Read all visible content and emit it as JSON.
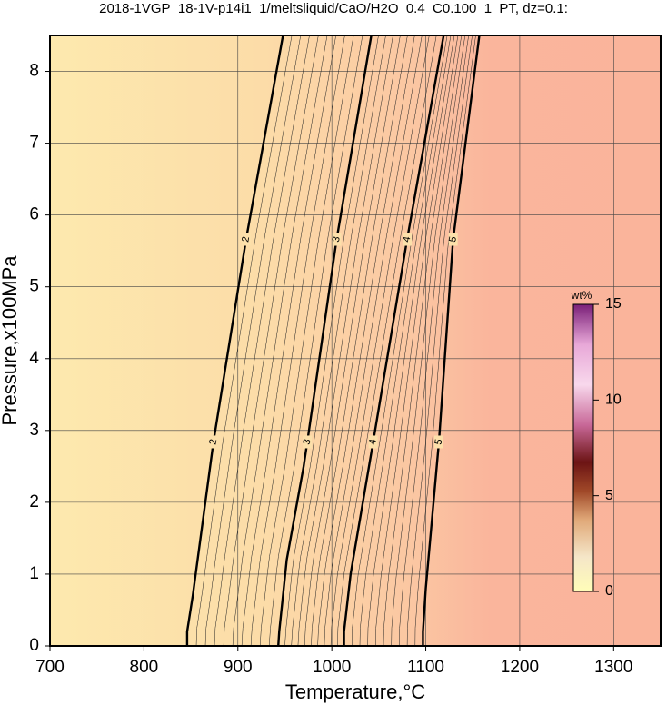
{
  "chart_data": {
    "type": "contour",
    "title": "2018-1VGP_18-1V-p14i1_1/meltsliquid/CaO/H2O_0.4_C0.100_1_PT, dz=0.1:",
    "x_label": "Temperature,°C",
    "y_label": "Pressure,x100MPa",
    "xlim": [
      700,
      1350
    ],
    "ylim": [
      0,
      8.5
    ],
    "xticks": [
      700,
      800,
      900,
      1000,
      1100,
      1200,
      1300
    ],
    "yticks": [
      0,
      1,
      2,
      3,
      4,
      5,
      6,
      7,
      8
    ],
    "grid": true,
    "contours": [
      {
        "level": 2,
        "x": [
          846,
          846,
          852,
          874,
          909,
          948
        ],
        "y": [
          0,
          0.2,
          0.7,
          2.84,
          5.68,
          8.5
        ]
      },
      {
        "level": 3,
        "x": [
          943,
          944,
          952,
          970,
          974,
          1005,
          1042
        ],
        "y": [
          0,
          0.2,
          1.2,
          2.5,
          2.85,
          5.65,
          8.5
        ]
      },
      {
        "level": 4,
        "x": [
          1013,
          1013,
          1020,
          1044,
          1080,
          1119
        ],
        "y": [
          0,
          0.2,
          1.0,
          2.84,
          5.65,
          8.5
        ]
      },
      {
        "level": 5,
        "x": [
          1097,
          1097,
          1100,
          1114,
          1129,
          1157
        ],
        "y": [
          0,
          0.2,
          0.8,
          2.84,
          5.65,
          8.5
        ]
      }
    ],
    "colorbar": {
      "label": "wt%",
      "lim": [
        0,
        15
      ],
      "ticks": [
        0,
        5,
        10,
        15
      ]
    }
  }
}
